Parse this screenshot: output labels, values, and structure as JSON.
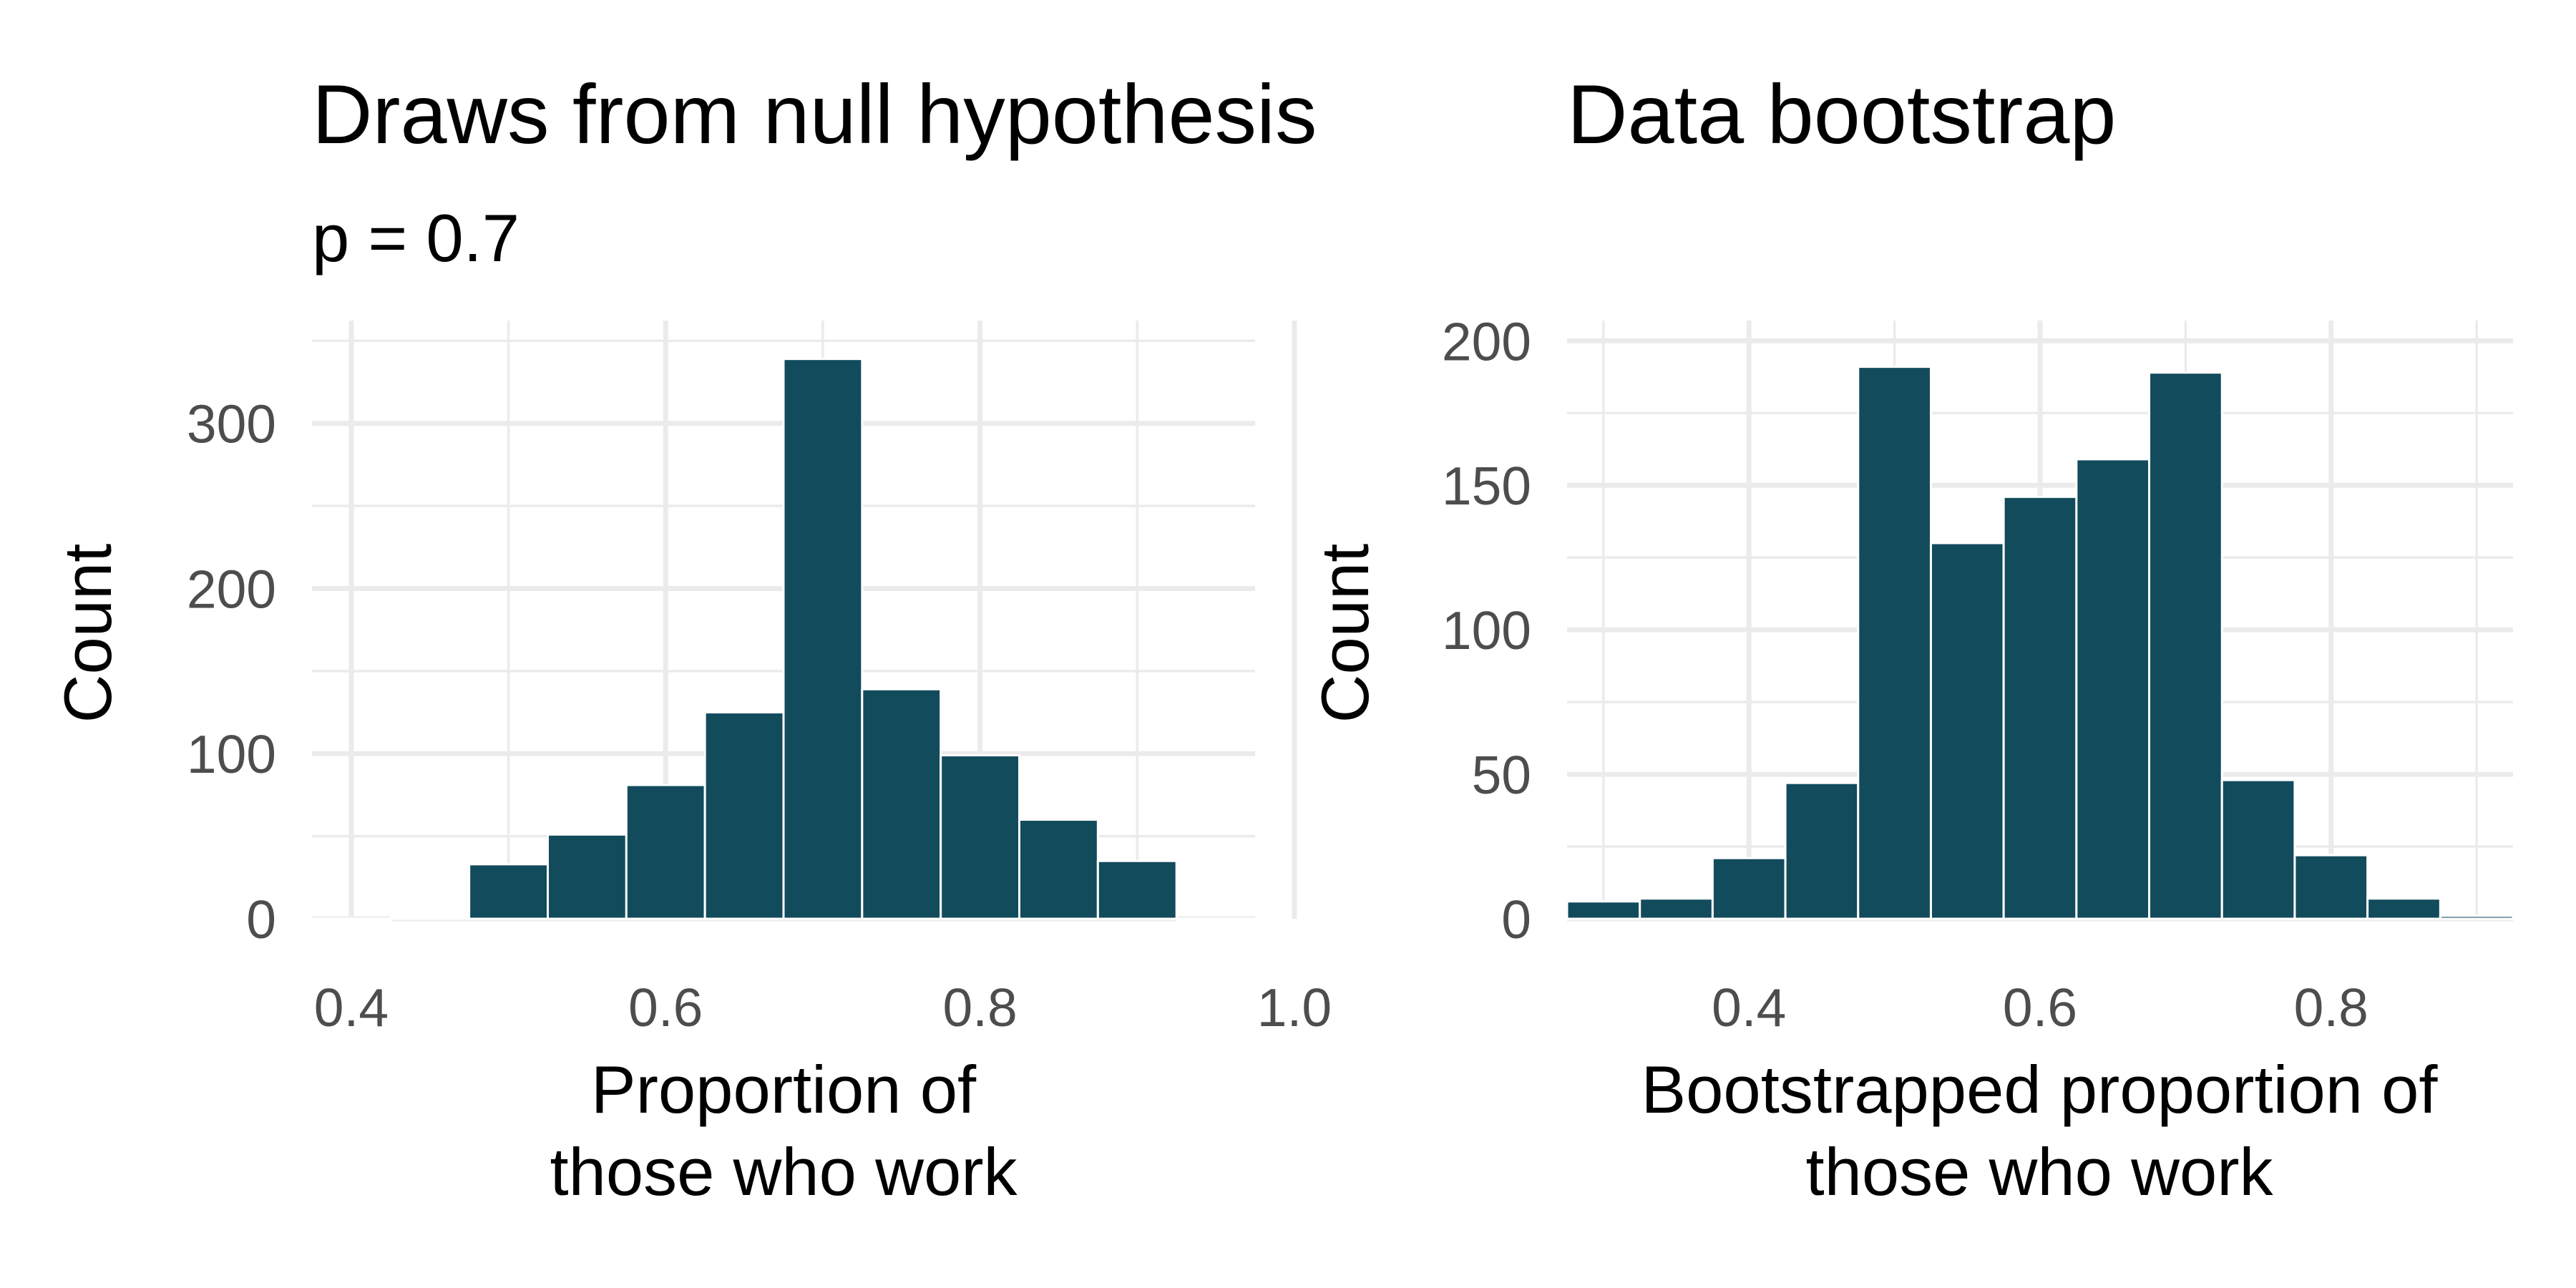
{
  "bar_color": "#124b5c",
  "chart_data": [
    {
      "type": "bar",
      "title": "Draws from null hypothesis",
      "subtitle": "p = 0.7",
      "xlabel": [
        "Proportion of",
        "those who work"
      ],
      "ylabel": "Count",
      "bin_width": 0.05,
      "x": [
        0.4,
        0.45,
        0.5,
        0.55,
        0.6,
        0.65,
        0.7,
        0.75,
        0.8,
        0.85,
        0.9,
        0.95
      ],
      "values": [
        0,
        1,
        33,
        51,
        81,
        125,
        339,
        139,
        99,
        60,
        35,
        0
      ],
      "xlim": [
        0.375,
        0.975
      ],
      "ylim": [
        0,
        350
      ],
      "x_ticks": [
        "0.4",
        "0.6",
        "0.8",
        "1.0"
      ],
      "y_ticks": [
        "0",
        "100",
        "200",
        "300"
      ],
      "grid": true
    },
    {
      "type": "bar",
      "title": "Data bootstrap",
      "xlabel": [
        "Bootstrapped proportion of",
        "those who work"
      ],
      "ylabel": "Count",
      "bin_width": 0.05,
      "x": [
        0.3,
        0.35,
        0.4,
        0.45,
        0.5,
        0.55,
        0.6,
        0.65,
        0.7,
        0.75,
        0.8,
        0.85,
        0.9
      ],
      "values": [
        6,
        7,
        21,
        47,
        191,
        130,
        146,
        159,
        189,
        48,
        22,
        7,
        1
      ],
      "xlim": [
        0.275,
        0.925
      ],
      "ylim": [
        0,
        200
      ],
      "x_ticks": [
        "0.4",
        "0.6",
        "0.8"
      ],
      "y_ticks": [
        "0",
        "50",
        "100",
        "150",
        "200"
      ],
      "grid": true
    }
  ]
}
